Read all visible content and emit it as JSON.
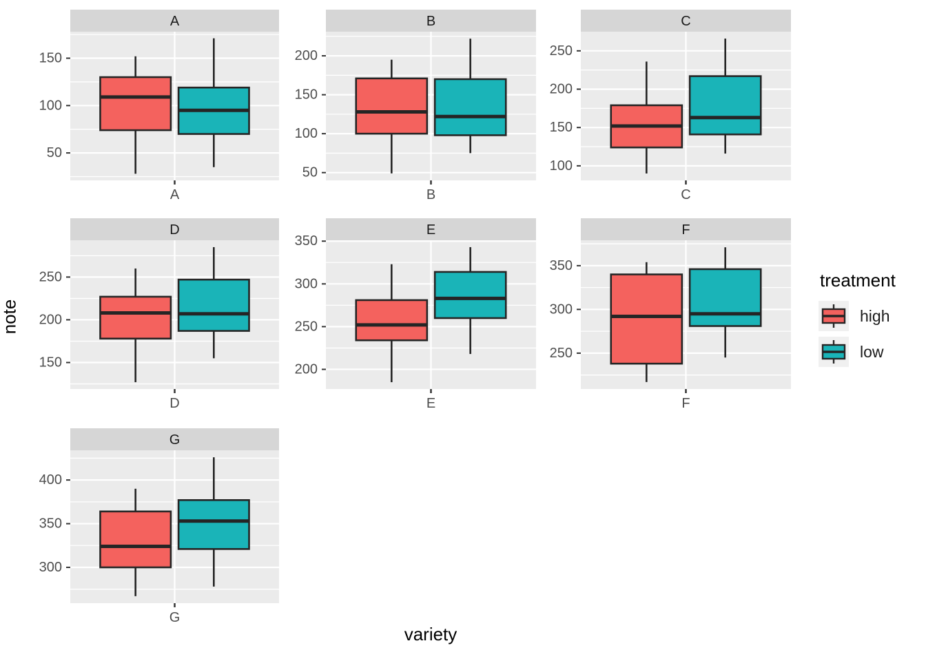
{
  "figure": {
    "kind": "faceted boxplot",
    "background": "#FFFFFF",
    "colors": {
      "high": "#F4625E",
      "low": "#1AB4B8",
      "panel_bg": "#EBEBEB",
      "strip_bg": "#D6D6D6",
      "grid_major": "#FFFFFF",
      "grid_minor": "#FFFFFF",
      "box_stroke": "#252525",
      "tick_mark": "#333333",
      "tick_text": "#4D4D4D",
      "strip_text": "#1A1A1A",
      "legend_key_bg": "#F0F0F0"
    }
  },
  "legend": {
    "title": "treatment",
    "position": "right",
    "items": [
      {
        "label": "high",
        "color_key": "high"
      },
      {
        "label": "low",
        "color_key": "low"
      }
    ]
  },
  "chart_data": {
    "type": "boxplot",
    "title": "",
    "xlabel": "variety",
    "ylabel": "note",
    "facet_variable": "variety",
    "series_variable": "treatment",
    "series": [
      "high",
      "low"
    ],
    "grid": true,
    "free_y_scales": true,
    "legend_position": "right",
    "facets": [
      {
        "label": "A",
        "yticks": [
          50,
          100,
          150
        ],
        "ylim": [
          21,
          178
        ],
        "boxes": {
          "high": {
            "min": 28,
            "q1": 74,
            "median": 109,
            "q3": 130,
            "max": 152
          },
          "low": {
            "min": 35,
            "q1": 70,
            "median": 95,
            "q3": 119,
            "max": 171
          }
        }
      },
      {
        "label": "B",
        "yticks": [
          50,
          100,
          150,
          200
        ],
        "ylim": [
          40,
          231
        ],
        "boxes": {
          "high": {
            "min": 49,
            "q1": 100,
            "median": 128,
            "q3": 171,
            "max": 195
          },
          "low": {
            "min": 75,
            "q1": 98,
            "median": 122,
            "q3": 170,
            "max": 222
          }
        }
      },
      {
        "label": "C",
        "yticks": [
          100,
          150,
          200,
          250
        ],
        "ylim": [
          81,
          275
        ],
        "boxes": {
          "high": {
            "min": 90,
            "q1": 124,
            "median": 152,
            "q3": 179,
            "max": 236
          },
          "low": {
            "min": 116,
            "q1": 141,
            "median": 163,
            "q3": 217,
            "max": 266
          }
        }
      },
      {
        "label": "D",
        "yticks": [
          150,
          200,
          250
        ],
        "ylim": [
          119,
          293
        ],
        "boxes": {
          "high": {
            "min": 127,
            "q1": 178,
            "median": 208,
            "q3": 227,
            "max": 260
          },
          "low": {
            "min": 155,
            "q1": 187,
            "median": 207,
            "q3": 247,
            "max": 285
          }
        }
      },
      {
        "label": "E",
        "yticks": [
          200,
          250,
          300,
          350
        ],
        "ylim": [
          177,
          351
        ],
        "boxes": {
          "high": {
            "min": 185,
            "q1": 234,
            "median": 252,
            "q3": 281,
            "max": 323
          },
          "low": {
            "min": 218,
            "q1": 260,
            "median": 283,
            "q3": 314,
            "max": 343
          }
        }
      },
      {
        "label": "F",
        "yticks": [
          250,
          300,
          350
        ],
        "ylim": [
          209,
          379
        ],
        "boxes": {
          "high": {
            "min": 217,
            "q1": 238,
            "median": 292,
            "q3": 340,
            "max": 354
          },
          "low": {
            "min": 245,
            "q1": 281,
            "median": 295,
            "q3": 346,
            "max": 371
          }
        }
      },
      {
        "label": "G",
        "yticks": [
          300,
          350,
          400
        ],
        "ylim": [
          259,
          434
        ],
        "boxes": {
          "high": {
            "min": 267,
            "q1": 300,
            "median": 324,
            "q3": 364,
            "max": 390
          },
          "low": {
            "min": 278,
            "q1": 321,
            "median": 353,
            "q3": 377,
            "max": 426
          }
        }
      }
    ]
  }
}
